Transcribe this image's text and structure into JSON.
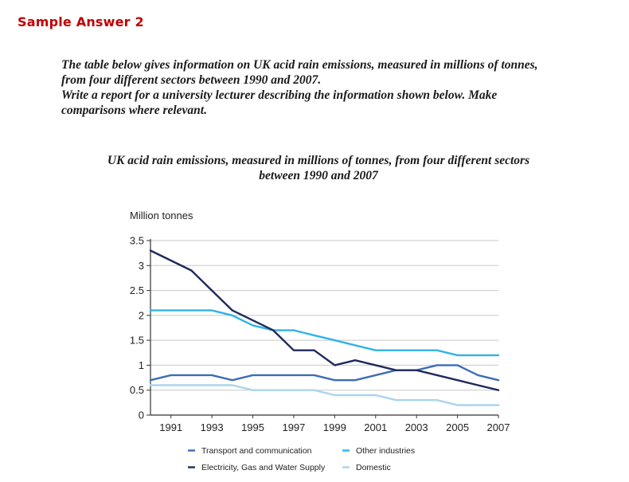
{
  "header": {
    "title": "Sample Answer 2"
  },
  "prompt": {
    "lines": [
      "The table below gives information on UK acid rain emissions, measured in millions of tonnes,",
      "from four different sectors between 1990 and 2007.",
      "Write a report for a university lecturer describing the information shown below. Make",
      "comparisons where relevant."
    ]
  },
  "chart_data": {
    "type": "line",
    "title_lines": [
      "UK acid rain emissions, measured in millions of tonnes, from four different sectors",
      "between 1990 and 2007"
    ],
    "ylabel": "Million tonnes",
    "xlabel": "",
    "ylim": [
      0,
      3.5
    ],
    "yticks": [
      0,
      0.5,
      1,
      1.5,
      2,
      2.5,
      3,
      3.5
    ],
    "ytick_labels": [
      "0",
      "0.5",
      "1",
      "1.5",
      "2",
      "2.5",
      "3",
      "3.5"
    ],
    "xlim": [
      1990,
      2007
    ],
    "xticks": [
      1991,
      1993,
      1995,
      1997,
      1999,
      2001,
      2003,
      2005,
      2007
    ],
    "xtick_labels": [
      "1991",
      "1993",
      "1995",
      "1997",
      "1999",
      "2001",
      "2003",
      "2005",
      "2007"
    ],
    "grid": true,
    "x": [
      1990,
      1991,
      1992,
      1993,
      1994,
      1995,
      1996,
      1997,
      1998,
      1999,
      2000,
      2001,
      2002,
      2003,
      2004,
      2005,
      2006,
      2007
    ],
    "series": [
      {
        "name": "Transport and communication",
        "color": "#3d6db5",
        "values": [
          0.7,
          0.8,
          0.8,
          0.8,
          0.7,
          0.8,
          0.8,
          0.8,
          0.8,
          0.7,
          0.7,
          0.8,
          0.9,
          0.9,
          1.0,
          1.0,
          0.8,
          0.7
        ]
      },
      {
        "name": "Electricity, Gas and Water Supply",
        "color": "#1f2a5c",
        "values": [
          3.3,
          3.1,
          2.9,
          2.5,
          2.1,
          1.9,
          1.7,
          1.3,
          1.3,
          1.0,
          1.1,
          1.0,
          0.9,
          0.9,
          0.8,
          0.7,
          0.6,
          0.5
        ]
      },
      {
        "name": "Other industries",
        "color": "#2fb3e6",
        "values": [
          2.1,
          2.1,
          2.1,
          2.1,
          2.0,
          1.8,
          1.7,
          1.7,
          1.6,
          1.5,
          1.4,
          1.3,
          1.3,
          1.3,
          1.3,
          1.2,
          1.2,
          1.2
        ]
      },
      {
        "name": "Domestic",
        "color": "#aad4ee",
        "values": [
          0.6,
          0.6,
          0.6,
          0.6,
          0.6,
          0.5,
          0.5,
          0.5,
          0.5,
          0.4,
          0.4,
          0.4,
          0.3,
          0.3,
          0.3,
          0.2,
          0.2,
          0.2
        ]
      }
    ],
    "legend": {
      "placement": "bottom",
      "entries": [
        "Transport and communication",
        "Other industries",
        "Electricity, Gas and Water Supply",
        "Domestic"
      ]
    }
  }
}
